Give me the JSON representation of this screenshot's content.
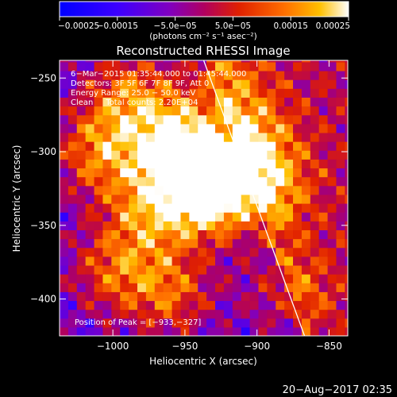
{
  "chart_data": {
    "type": "heatmap",
    "title": "Reconstructed RHESSI Image",
    "xlabel": "Heliocentric X (arcsec)",
    "ylabel": "Heliocentric Y (arcsec)",
    "xlim": [
      -1037,
      -837
    ],
    "ylim": [
      -425,
      -238
    ],
    "x_ticks": [
      -1000,
      -950,
      -900,
      -850
    ],
    "x_tick_labels": [
      "−1000",
      "−950",
      "−900",
      "−850"
    ],
    "y_ticks": [
      -250,
      -300,
      -350,
      -400
    ],
    "y_tick_labels": [
      "−250",
      "−300",
      "−350",
      "−400"
    ],
    "colorbar": {
      "range": [
        -0.00025,
        0.00025
      ],
      "ticks": [
        -0.00025,
        -0.00015,
        -5e-05,
        5e-05,
        0.00015,
        0.00025
      ],
      "tick_labels": [
        "−0.00025",
        "−0.00015",
        "−5.0e−05",
        "5.0e−05",
        "0.00015",
        "0.00025"
      ],
      "unit_label": "(photons cm⁻² s⁻¹ asec⁻²)",
      "colors": [
        "#0000ff",
        "#3c00ff",
        "#8000c0",
        "#b00060",
        "#e02000",
        "#ff7000",
        "#ffc000",
        "#ffffff"
      ]
    },
    "annotations": [
      "6−Mar−2015 01:35:44.000 to 01:45:44.000",
      "Detectors: 3F 5F 6F 7F 8F 9F, Att 0",
      "Energy Range: 25.0 − 50.0 keV",
      "Clean     Total counts: 2.20E+04"
    ],
    "peak_label": "Position of Peak = [−933,−327]",
    "peak": [
      -933,
      -327
    ],
    "limb_line": [
      [
        -937,
        -238
      ],
      [
        -867,
        -425
      ]
    ],
    "regions": [
      {
        "x": -1010,
        "y": -300,
        "w": 0.85
      },
      {
        "x": -990,
        "y": -260,
        "w": 0.75
      },
      {
        "x": -960,
        "y": -290,
        "w": 0.95
      },
      {
        "x": -940,
        "y": -315,
        "w": 1.0
      },
      {
        "x": -933,
        "y": -327,
        "w": 1.0
      },
      {
        "x": -975,
        "y": -340,
        "w": 0.8
      },
      {
        "x": -1000,
        "y": -380,
        "w": 0.7
      },
      {
        "x": -960,
        "y": -395,
        "w": 0.75
      },
      {
        "x": -895,
        "y": -325,
        "w": 0.7
      },
      {
        "x": -905,
        "y": -290,
        "w": 0.55
      },
      {
        "x": -880,
        "y": -395,
        "w": 0.5
      },
      {
        "x": -925,
        "y": -250,
        "w": 0.45
      }
    ],
    "grid": false
  },
  "footer_timestamp": "20−Aug−2017 02:35"
}
